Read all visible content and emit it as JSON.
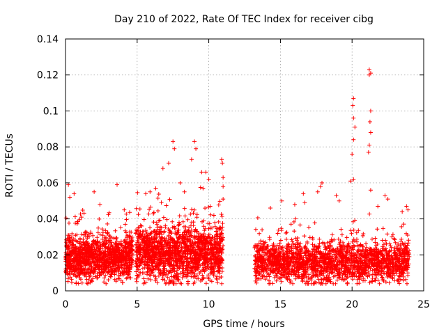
{
  "chart_data": {
    "type": "scatter",
    "title": "Day 210 of 2022, Rate Of TEC Index for receiver cibg",
    "xlabel": "GPS time / hours",
    "ylabel": "ROTI / TECUs",
    "xlim": [
      0,
      25
    ],
    "ylim": [
      0,
      0.14
    ],
    "grid": true,
    "marker": "+",
    "color": "#ff0000",
    "x_ticks": [
      "0",
      "5",
      "10",
      "15",
      "20",
      "25"
    ],
    "y_ticks": [
      "0",
      "0.02",
      "0.04",
      "0.06",
      "0.08",
      "0.1",
      "0.12",
      "0.14"
    ],
    "series": [
      {
        "name": "ROTI",
        "segments": [
          {
            "x_start": 0.0,
            "x_end": 4.7,
            "base": 0.018,
            "spread": 0.012,
            "peak": 0.059
          },
          {
            "x_start": 4.9,
            "x_end": 11.0,
            "base": 0.021,
            "spread": 0.015,
            "peak": 0.083
          },
          {
            "x_start": 13.2,
            "x_end": 24.0,
            "base": 0.016,
            "spread": 0.011,
            "peak": 0.123
          }
        ],
        "points": [
          [
            0.2,
            0.059
          ],
          [
            0.3,
            0.052
          ],
          [
            0.6,
            0.054
          ],
          [
            2.0,
            0.055
          ],
          [
            2.4,
            0.048
          ],
          [
            3.6,
            0.059
          ],
          [
            4.1,
            0.045
          ],
          [
            5.6,
            0.054
          ],
          [
            5.9,
            0.055
          ],
          [
            6.3,
            0.057
          ],
          [
            6.8,
            0.068
          ],
          [
            7.2,
            0.071
          ],
          [
            7.5,
            0.083
          ],
          [
            7.6,
            0.079
          ],
          [
            8.0,
            0.06
          ],
          [
            8.3,
            0.055
          ],
          [
            8.8,
            0.073
          ],
          [
            9.0,
            0.083
          ],
          [
            9.1,
            0.079
          ],
          [
            9.5,
            0.066
          ],
          [
            9.6,
            0.057
          ],
          [
            9.8,
            0.066
          ],
          [
            10.0,
            0.062
          ],
          [
            10.1,
            0.047
          ],
          [
            10.9,
            0.073
          ],
          [
            10.95,
            0.071
          ],
          [
            11.0,
            0.063
          ],
          [
            11.0,
            0.058
          ],
          [
            11.0,
            0.051
          ],
          [
            14.3,
            0.046
          ],
          [
            15.1,
            0.05
          ],
          [
            16.0,
            0.048
          ],
          [
            16.6,
            0.054
          ],
          [
            16.7,
            0.049
          ],
          [
            17.6,
            0.055
          ],
          [
            17.8,
            0.058
          ],
          [
            17.9,
            0.06
          ],
          [
            18.9,
            0.053
          ],
          [
            19.1,
            0.05
          ],
          [
            19.9,
            0.061
          ],
          [
            20.1,
            0.107
          ],
          [
            20.05,
            0.103
          ],
          [
            20.1,
            0.096
          ],
          [
            20.2,
            0.091
          ],
          [
            20.1,
            0.084
          ],
          [
            20.0,
            0.076
          ],
          [
            20.1,
            0.062
          ],
          [
            21.2,
            0.123
          ],
          [
            21.3,
            0.121
          ],
          [
            21.2,
            0.12
          ],
          [
            21.3,
            0.1
          ],
          [
            21.25,
            0.094
          ],
          [
            21.3,
            0.088
          ],
          [
            21.2,
            0.081
          ],
          [
            21.15,
            0.077
          ],
          [
            21.3,
            0.056
          ],
          [
            21.8,
            0.047
          ],
          [
            22.3,
            0.053
          ],
          [
            22.5,
            0.051
          ],
          [
            23.5,
            0.044
          ],
          [
            23.8,
            0.047
          ],
          [
            23.9,
            0.045
          ]
        ]
      }
    ]
  }
}
